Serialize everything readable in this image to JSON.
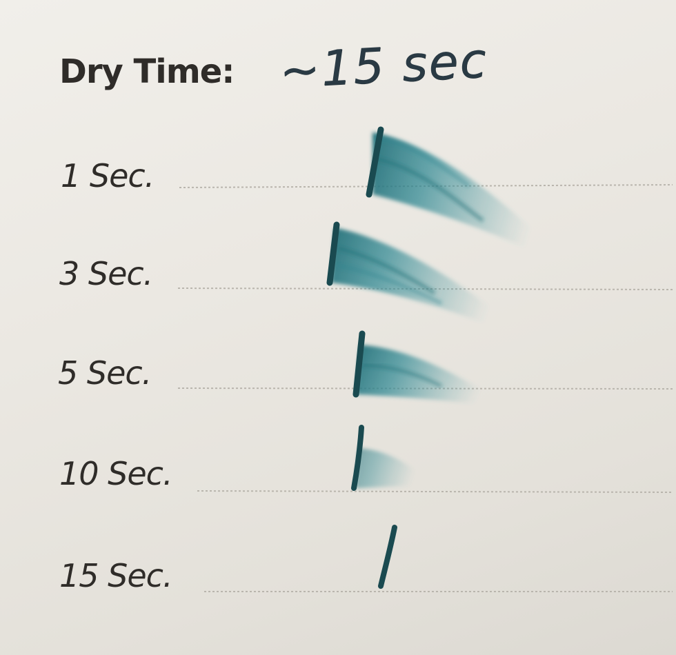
{
  "heading": {
    "label": "Dry Time:",
    "handwritten_value": "~15 sec"
  },
  "rows": [
    {
      "label": "1 Sec."
    },
    {
      "label": "3 Sec."
    },
    {
      "label": "5 Sec."
    },
    {
      "label": "10 Sec."
    },
    {
      "label": "15 Sec."
    }
  ],
  "colors": {
    "paper": "#ece9e3",
    "print_text": "#2f2c29",
    "handwriting": "#2a3a44",
    "ink_teal": "#1f6f78",
    "ink_dark": "#1a4a50",
    "dotted_line": "#b9b5ad"
  }
}
